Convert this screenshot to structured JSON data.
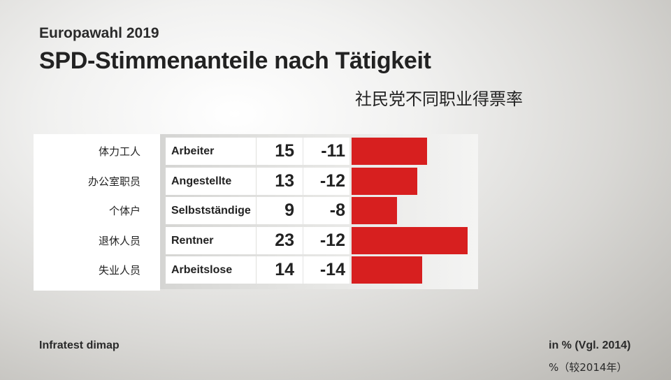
{
  "header": {
    "kicker": "Europawahl 2019",
    "title": "SPD-Stimmenanteile nach Tätigkeit",
    "subtitle_cn": "社民党不同职业得票率"
  },
  "chart_data": {
    "type": "bar",
    "orientation": "horizontal",
    "categories": [
      "Arbeiter",
      "Angestellte",
      "Selbstständige",
      "Rentner",
      "Arbeitslose"
    ],
    "categories_cn": [
      "体力工人",
      "办公室职员",
      "个体户",
      "退休人员",
      "失业人员"
    ],
    "series": [
      {
        "values": [
          15,
          13,
          9,
          23,
          14
        ],
        "color": "#d71f1f"
      },
      {
        "values": [
          -11,
          -12,
          -8,
          -12,
          -14
        ]
      }
    ],
    "value_labels": [
      "15",
      "13",
      "9",
      "23",
      "14"
    ],
    "diff_labels": [
      "-11",
      "-12",
      "-8",
      "-12",
      "-14"
    ],
    "xlim": [
      0,
      23
    ]
  },
  "footer": {
    "source": "Infratest dimap",
    "unit": "in % (Vgl. 2014)",
    "unit_cn": "%（较2014年）"
  }
}
